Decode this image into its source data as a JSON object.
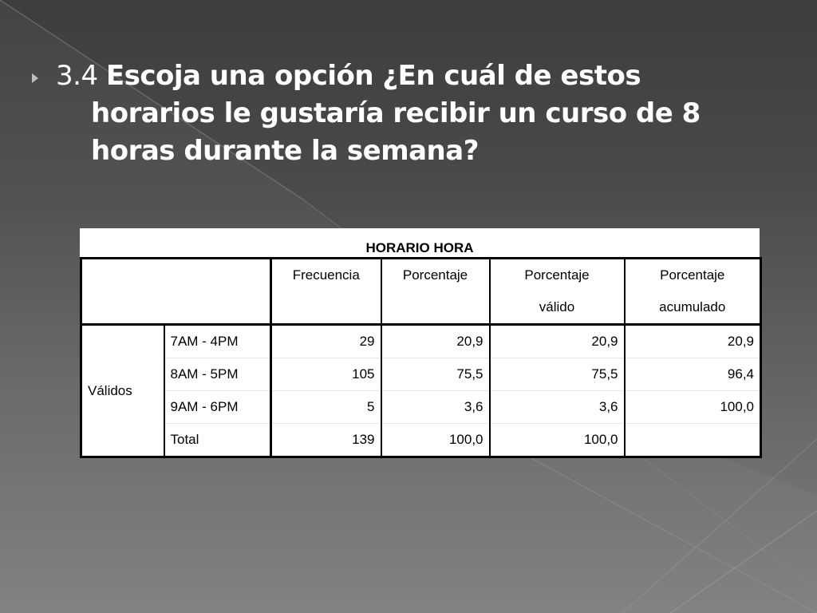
{
  "slide": {
    "number": "3.4",
    "question_line1": "Escoja una opción ¿En cuál de estos",
    "question_line2": "horarios le gustaría recibir un curso de 8",
    "question_line3": "horas durante la semana?"
  },
  "table": {
    "title": "HORARIO HORA",
    "headers": {
      "frecuencia": "Frecuencia",
      "porcentaje": "Porcentaje",
      "porcentaje_valido_1": "Porcentaje",
      "porcentaje_valido_2": "válido",
      "porcentaje_acumulado_1": "Porcentaje",
      "porcentaje_acumulado_2": "acumulado"
    },
    "group_label": "Válidos",
    "rows": [
      {
        "label": "7AM - 4PM",
        "frecuencia": "29",
        "porcentaje": "20,9",
        "valido": "20,9",
        "acumulado": "20,9"
      },
      {
        "label": "8AM - 5PM",
        "frecuencia": "105",
        "porcentaje": "75,5",
        "valido": "75,5",
        "acumulado": "96,4"
      },
      {
        "label": "9AM - 6PM",
        "frecuencia": "5",
        "porcentaje": "3,6",
        "valido": "3,6",
        "acumulado": "100,0"
      },
      {
        "label": "Total",
        "frecuencia": "139",
        "porcentaje": "100,0",
        "valido": "100,0",
        "acumulado": ""
      }
    ]
  }
}
